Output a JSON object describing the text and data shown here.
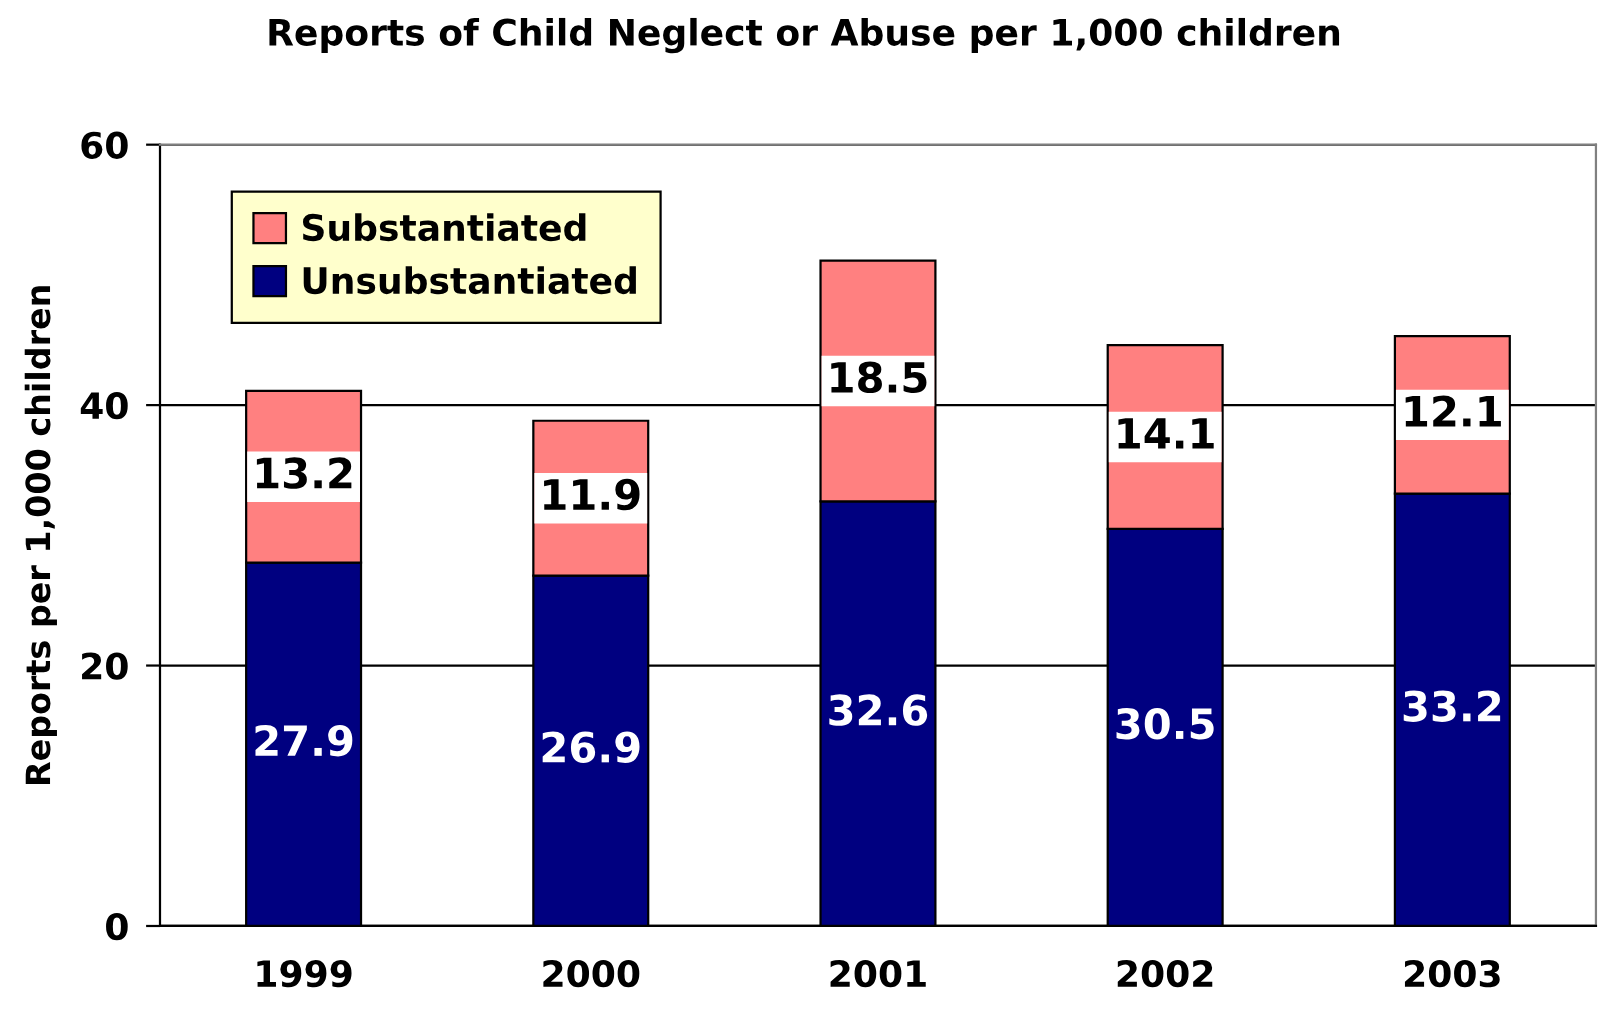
{
  "chart_data": {
    "type": "bar",
    "title": "Reports of Child Neglect or Abuse per 1,000 children",
    "ylabel": "Reports per 1,000 children",
    "categories": [
      "1999",
      "2000",
      "2001",
      "2002",
      "2003"
    ],
    "series": [
      {
        "name": "Unsubstantiated",
        "color": "#000080",
        "values": [
          27.9,
          26.9,
          32.6,
          30.5,
          33.2
        ]
      },
      {
        "name": "Substantiated",
        "color": "#ff8080",
        "values": [
          13.2,
          11.9,
          18.5,
          14.1,
          12.1
        ]
      }
    ],
    "stacked": true,
    "data_labels": true,
    "ylim": [
      0,
      60
    ],
    "yticks": [
      0,
      20,
      40,
      60
    ],
    "grid": "y",
    "legend": "top left"
  }
}
